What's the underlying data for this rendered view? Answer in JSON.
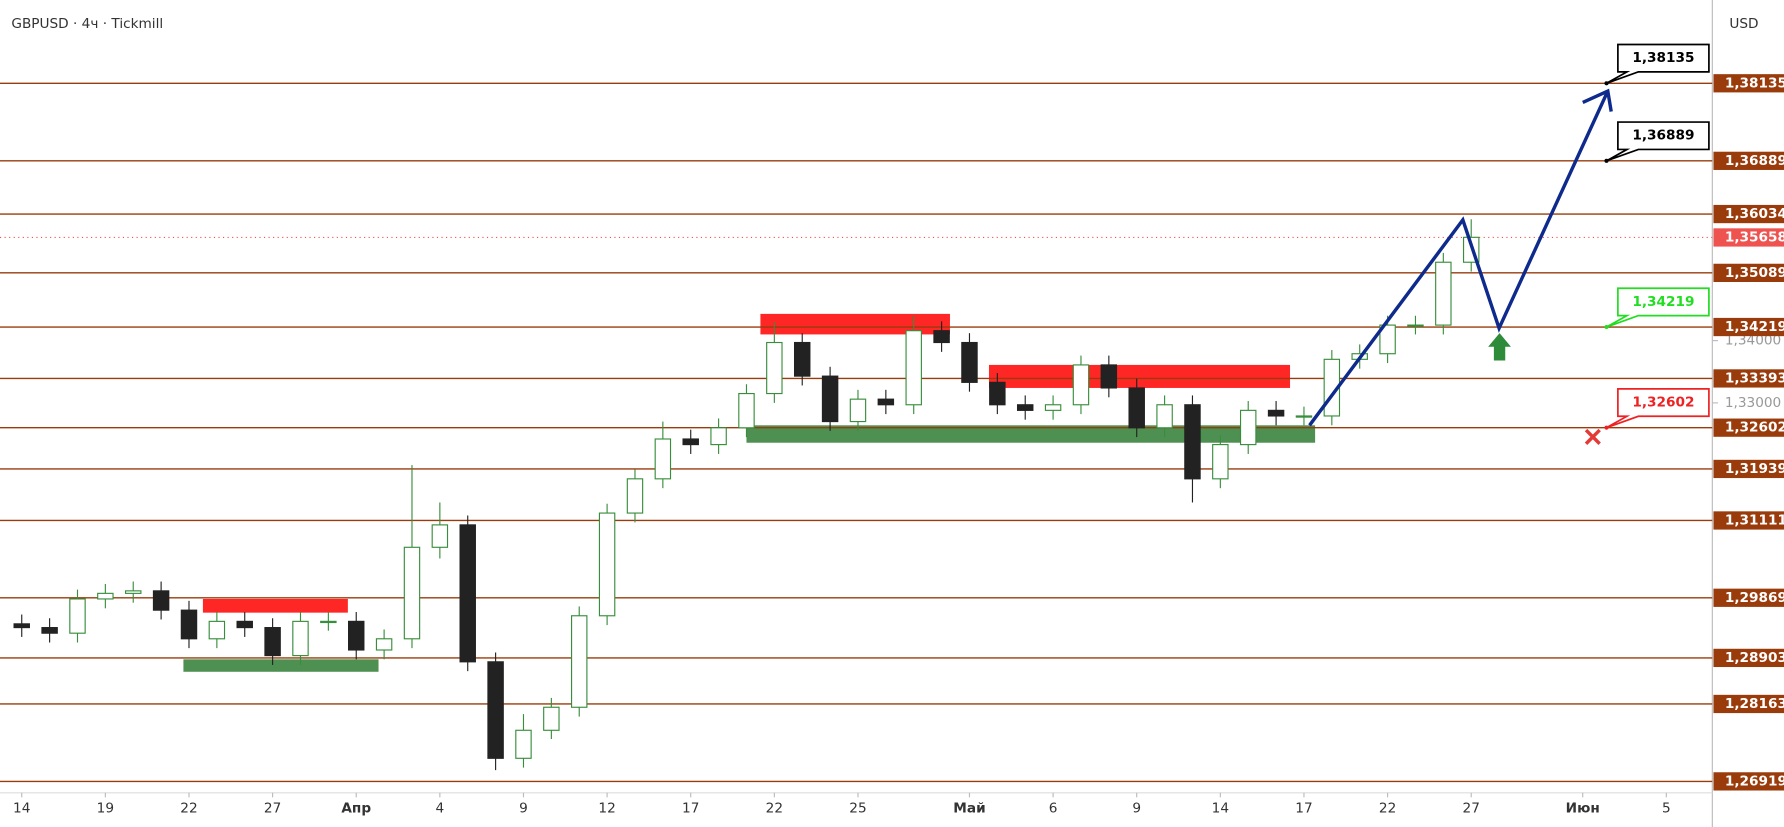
{
  "chart_data": {
    "type": "candlestick",
    "title": "GBPUSD · 4ч · Tickmill",
    "currency": "USD",
    "x": [
      0,
      1,
      2,
      3,
      4,
      5,
      6,
      7,
      8,
      9,
      10,
      11,
      12,
      13,
      14,
      15,
      16,
      17,
      18,
      19,
      20,
      21,
      22,
      23,
      24,
      25,
      26,
      27,
      28,
      29,
      30,
      31,
      32,
      33,
      34,
      35,
      36,
      37,
      38,
      39,
      40,
      41,
      42,
      43,
      44,
      45,
      46,
      47,
      48,
      49,
      50,
      51,
      52
    ],
    "open": [
      1.2945,
      1.2939,
      1.293,
      1.2985,
      1.2994,
      1.2998,
      1.2967,
      1.2921,
      1.2949,
      1.2939,
      1.2894,
      1.2949,
      1.2949,
      1.2903,
      1.2921,
      1.3068,
      1.3104,
      1.2884,
      1.2729,
      1.2774,
      1.2811,
      1.2958,
      1.3123,
      1.3178,
      1.3242,
      1.3233,
      1.326,
      1.3315,
      1.3397,
      1.3343,
      1.327,
      1.3306,
      1.3297,
      1.3416,
      1.3397,
      1.3333,
      1.3297,
      1.3288,
      1.3297,
      1.3361,
      1.3324,
      1.326,
      1.3297,
      1.3178,
      1.3233,
      1.3288,
      1.3279,
      1.3279,
      1.337,
      1.3379,
      1.3425,
      1.3425,
      1.3526
    ],
    "high": [
      1.296,
      1.2954,
      1.3,
      1.3009,
      1.3013,
      1.3013,
      1.2982,
      1.2964,
      1.2964,
      1.2954,
      1.2964,
      1.2964,
      1.2964,
      1.2936,
      1.32,
      1.314,
      1.3119,
      1.2899,
      1.28,
      1.2826,
      1.2973,
      1.3138,
      1.3193,
      1.327,
      1.3257,
      1.3275,
      1.333,
      1.343,
      1.3412,
      1.3358,
      1.3321,
      1.3321,
      1.344,
      1.3431,
      1.3412,
      1.3348,
      1.3312,
      1.3312,
      1.3376,
      1.3376,
      1.3339,
      1.3312,
      1.3312,
      1.3248,
      1.3303,
      1.3303,
      1.3294,
      1.3385,
      1.3394,
      1.344,
      1.344,
      1.3541,
      1.3595
    ],
    "low": [
      1.2924,
      1.2915,
      1.2915,
      1.297,
      1.2979,
      1.2952,
      1.2906,
      1.2906,
      1.2924,
      1.2879,
      1.2879,
      1.2934,
      1.2888,
      1.2888,
      1.2906,
      1.305,
      1.2869,
      1.271,
      1.2714,
      1.276,
      1.2796,
      1.2943,
      1.3108,
      1.3163,
      1.3218,
      1.3218,
      1.3245,
      1.33,
      1.3328,
      1.3255,
      1.3255,
      1.3282,
      1.3282,
      1.3382,
      1.3318,
      1.3282,
      1.3273,
      1.3273,
      1.3282,
      1.3309,
      1.3245,
      1.3245,
      1.314,
      1.3163,
      1.3218,
      1.3264,
      1.3264,
      1.3264,
      1.3355,
      1.3364,
      1.341,
      1.341,
      1.3511
    ],
    "close": [
      1.2939,
      1.293,
      1.2985,
      1.2994,
      1.2998,
      1.2967,
      1.2921,
      1.2949,
      1.2939,
      1.2894,
      1.2949,
      1.2949,
      1.2903,
      1.2921,
      1.3068,
      1.3104,
      1.2884,
      1.2729,
      1.2774,
      1.2811,
      1.2958,
      1.3123,
      1.3178,
      1.3242,
      1.3233,
      1.326,
      1.3315,
      1.3397,
      1.3343,
      1.327,
      1.3306,
      1.3297,
      1.3416,
      1.3397,
      1.3333,
      1.3297,
      1.3288,
      1.3297,
      1.3361,
      1.3324,
      1.326,
      1.3297,
      1.3178,
      1.3233,
      1.3288,
      1.3279,
      1.3279,
      1.337,
      1.3379,
      1.3425,
      1.3425,
      1.3526,
      1.3566
    ],
    "up_color": "#388e3c",
    "down_color": "#222222",
    "xlim": [
      -0.78,
      60.65
    ],
    "ylim": [
      1.26736,
      1.39473
    ],
    "xticks": [
      {
        "value": 0,
        "label": "14"
      },
      {
        "value": 3,
        "label": "19"
      },
      {
        "value": 6,
        "label": "22"
      },
      {
        "value": 9,
        "label": "27"
      },
      {
        "value": 12,
        "label": "Апр"
      },
      {
        "value": 15,
        "label": "4"
      },
      {
        "value": 18,
        "label": "9"
      },
      {
        "value": 21,
        "label": "12"
      },
      {
        "value": 24,
        "label": "17"
      },
      {
        "value": 27,
        "label": "22"
      },
      {
        "value": 30,
        "label": "25"
      },
      {
        "value": 34,
        "label": "Май"
      },
      {
        "value": 37,
        "label": "6"
      },
      {
        "value": 40,
        "label": "9"
      },
      {
        "value": 43,
        "label": "14"
      },
      {
        "value": 46,
        "label": "17"
      },
      {
        "value": 49,
        "label": "22"
      },
      {
        "value": 52,
        "label": "27"
      },
      {
        "value": 56,
        "label": "Июн"
      },
      {
        "value": 59,
        "label": "5"
      }
    ],
    "yticks": [
      {
        "value": 1.33,
        "label": "1,33000"
      },
      {
        "value": 1.34,
        "label": "1,34000"
      }
    ],
    "level_color": "#9a3b0c",
    "levels": [
      {
        "value": 1.38135,
        "label": "1,38135"
      },
      {
        "value": 1.36889,
        "label": "1,36889"
      },
      {
        "value": 1.36034,
        "label": "1,36034"
      },
      {
        "value": 1.35089,
        "label": "1,35089"
      },
      {
        "value": 1.34219,
        "label": "1,34219"
      },
      {
        "value": 1.33393,
        "label": "1,33393"
      },
      {
        "value": 1.32602,
        "label": "1,32602"
      },
      {
        "value": 1.31939,
        "label": "1,31939"
      },
      {
        "value": 1.31111,
        "label": "1,31111"
      },
      {
        "value": 1.29869,
        "label": "1,29869"
      },
      {
        "value": 1.28903,
        "label": "1,28903"
      },
      {
        "value": 1.28163,
        "label": "1,28163"
      },
      {
        "value": 1.26919,
        "label": "1,26919"
      }
    ],
    "current": {
      "value": 1.35658,
      "label": "1,35658",
      "color": "#ef5350"
    },
    "zones": [
      {
        "color": "#ff0000",
        "x": [
          6.5,
          11.7
        ],
        "y": [
          1.2963,
          1.2985
        ]
      },
      {
        "color": "#2e7d32",
        "x": [
          5.8,
          12.8
        ],
        "y": [
          1.2868,
          1.2888
        ]
      },
      {
        "color": "#ff0000",
        "x": [
          26.5,
          33.3
        ],
        "y": [
          1.341,
          1.3443
        ]
      },
      {
        "color": "#2e7d32",
        "x": [
          26,
          46.4
        ],
        "y": [
          1.3236,
          1.3264
        ]
      },
      {
        "color": "#ff0000",
        "x": [
          34.7,
          45.5
        ],
        "y": [
          1.3324,
          1.3361
        ]
      }
    ],
    "projection": {
      "color": "#0d2a8c",
      "x": [
        46.2,
        51.7,
        53.0,
        56.9
      ],
      "values": [
        1.3264,
        1.3594,
        1.342,
        1.3801
      ]
    },
    "callouts": [
      {
        "value": 1.38135,
        "label": "1,38135",
        "color": "#000000"
      },
      {
        "value": 1.36889,
        "label": "1,36889",
        "color": "#000000"
      },
      {
        "value": 1.34219,
        "label": "1,34219",
        "color": "#22dd22"
      },
      {
        "value": 1.32602,
        "label": "1,32602",
        "color": "#ee2222"
      }
    ]
  }
}
